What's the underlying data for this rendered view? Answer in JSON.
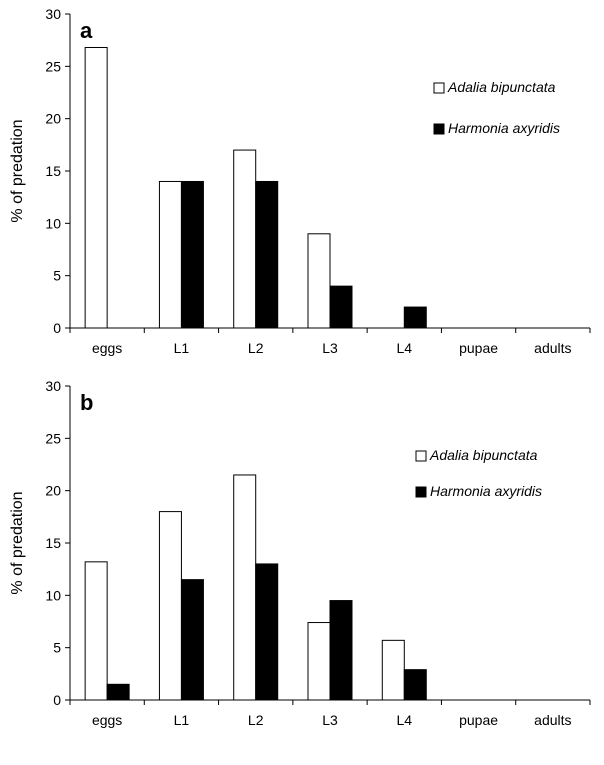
{
  "chart_data": [
    {
      "type": "bar",
      "panel": "a",
      "categories": [
        "eggs",
        "L1",
        "L2",
        "L3",
        "L4",
        "pupae",
        "adults"
      ],
      "series": [
        {
          "name": "Adalia bipunctata",
          "values": [
            26.8,
            14,
            17,
            9,
            0,
            0,
            0
          ],
          "fill": "#ffffff"
        },
        {
          "name": "Harmonia axyridis",
          "values": [
            0,
            14,
            14,
            4,
            2,
            0,
            0
          ],
          "fill": "#000000"
        }
      ],
      "ylabel": "% of predation",
      "ylim": [
        0,
        30
      ],
      "yticks": [
        0,
        5,
        10,
        15,
        20,
        25,
        30
      ],
      "grid": false,
      "legend_position": "top-right"
    },
    {
      "type": "bar",
      "panel": "b",
      "categories": [
        "eggs",
        "L1",
        "L2",
        "L3",
        "L4",
        "pupae",
        "adults"
      ],
      "series": [
        {
          "name": "Adalia bipunctata",
          "values": [
            13.2,
            18,
            21.5,
            7.4,
            5.7,
            0,
            0
          ],
          "fill": "#ffffff"
        },
        {
          "name": "Harmonia axyridis",
          "values": [
            1.5,
            11.5,
            13,
            9.5,
            2.9,
            0,
            0
          ],
          "fill": "#000000"
        }
      ],
      "ylabel": "% of predation",
      "ylim": [
        0,
        30
      ],
      "yticks": [
        0,
        5,
        10,
        15,
        20,
        25,
        30
      ],
      "grid": false,
      "legend_position": "top-right"
    }
  ]
}
